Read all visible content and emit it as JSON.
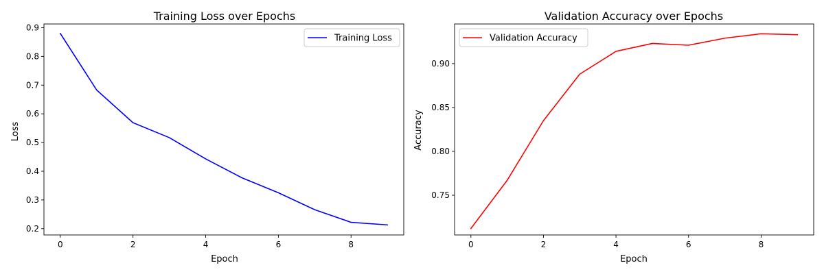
{
  "chart_data": [
    {
      "type": "line",
      "title": "Training Loss over Epochs",
      "xlabel": "Epoch",
      "ylabel": "Loss",
      "xlim": [
        -0.45,
        9.45
      ],
      "ylim": [
        0.178,
        0.913
      ],
      "xticks": [
        0,
        2,
        4,
        6,
        8
      ],
      "yticks": [
        0.2,
        0.3,
        0.4,
        0.5,
        0.6,
        0.7,
        0.8,
        0.9
      ],
      "ytick_labels": [
        "0.2",
        "0.3",
        "0.4",
        "0.5",
        "0.6",
        "0.7",
        "0.8",
        "0.9"
      ],
      "legend": "upper-right",
      "grid": false,
      "x": [
        0,
        1,
        2,
        3,
        4,
        5,
        6,
        7,
        8,
        9
      ],
      "series": [
        {
          "name": "Training Loss",
          "color": "#0000ff",
          "values": [
            0.88,
            0.683,
            0.569,
            0.517,
            0.443,
            0.377,
            0.325,
            0.266,
            0.222,
            0.213
          ]
        }
      ]
    },
    {
      "type": "line",
      "title": "Validation Accuracy over Epochs",
      "xlabel": "Epoch",
      "ylabel": "Accuracy",
      "xlim": [
        -0.45,
        9.45
      ],
      "ylim": [
        0.7047,
        0.9452
      ],
      "xticks": [
        0,
        2,
        4,
        6,
        8
      ],
      "yticks": [
        0.75,
        0.8,
        0.85,
        0.9
      ],
      "ytick_labels": [
        "0.75",
        "0.80",
        "0.85",
        "0.90"
      ],
      "legend": "upper-left",
      "grid": false,
      "x": [
        0,
        1,
        2,
        3,
        4,
        5,
        6,
        7,
        8,
        9
      ],
      "series": [
        {
          "name": "Validation Accuracy",
          "color": "#ff0000",
          "values": [
            0.712,
            0.767,
            0.835,
            0.888,
            0.914,
            0.923,
            0.921,
            0.929,
            0.934,
            0.933
          ]
        }
      ]
    }
  ]
}
